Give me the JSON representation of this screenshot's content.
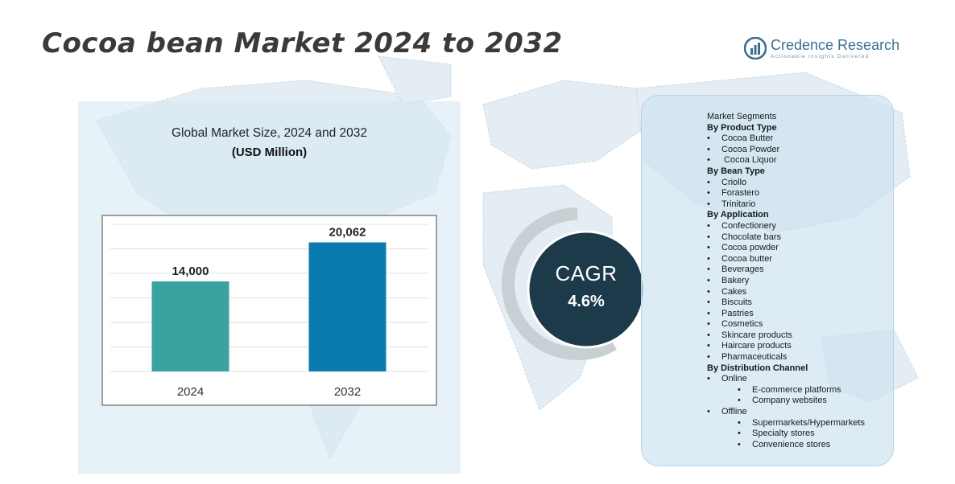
{
  "title": "Cocoa bean Market 2024 to 2032",
  "logo": {
    "name": "Credence Research",
    "tagline": "Actionable Insights Delivered"
  },
  "colors": {
    "bar_2024": "#3aa39f",
    "bar_2032": "#0b7bad",
    "cagr_circle": "#1d3a4b",
    "cagr_ring": "#c9d0d4"
  },
  "chart_data": {
    "type": "bar",
    "title": "Global Market Size, 2024 and 2032",
    "subtitle": "(USD Million)",
    "categories": [
      "2024",
      "2032"
    ],
    "values": [
      14000,
      20062
    ],
    "data_labels": [
      "14,000",
      "20,062"
    ],
    "xlabel": "",
    "ylabel": "",
    "ylim": [
      0,
      23000
    ],
    "grid": true
  },
  "cagr": {
    "label": "CAGR",
    "value": "4.6%"
  },
  "segments": [
    {
      "text": "Market Segments",
      "type": "title"
    },
    {
      "text": "By Product Type",
      "type": "heading"
    },
    {
      "text": "Cocoa Butter",
      "type": "item"
    },
    {
      "text": "Cocoa Powder",
      "type": "item"
    },
    {
      "text": " Cocoa Liquor",
      "type": "item"
    },
    {
      "text": "By Bean Type",
      "type": "heading"
    },
    {
      "text": "Criollo",
      "type": "item"
    },
    {
      "text": "Forastero",
      "type": "item"
    },
    {
      "text": "Trinitario",
      "type": "item"
    },
    {
      "text": "By Application",
      "type": "heading"
    },
    {
      "text": "Confectionery",
      "type": "item"
    },
    {
      "text": "Chocolate bars",
      "type": "item"
    },
    {
      "text": "Cocoa powder",
      "type": "item"
    },
    {
      "text": "Cocoa butter",
      "type": "item"
    },
    {
      "text": "Beverages",
      "type": "item"
    },
    {
      "text": "Bakery",
      "type": "item"
    },
    {
      "text": "Cakes",
      "type": "item"
    },
    {
      "text": "Biscuits",
      "type": "item"
    },
    {
      "text": "Pastries",
      "type": "item"
    },
    {
      "text": "Cosmetics",
      "type": "item"
    },
    {
      "text": "Skincare products",
      "type": "item"
    },
    {
      "text": "Haircare products",
      "type": "item"
    },
    {
      "text": "Pharmaceuticals",
      "type": "item"
    },
    {
      "text": "By Distribution Channel",
      "type": "heading"
    },
    {
      "text": "Online",
      "type": "item"
    },
    {
      "text": "E-commerce platforms",
      "type": "subitem"
    },
    {
      "text": "Company websites",
      "type": "subitem"
    },
    {
      "text": "Offline",
      "type": "item"
    },
    {
      "text": "Supermarkets/Hypermarkets",
      "type": "subitem"
    },
    {
      "text": "Specialty stores",
      "type": "subitem"
    },
    {
      "text": "Convenience stores",
      "type": "subitem"
    }
  ]
}
